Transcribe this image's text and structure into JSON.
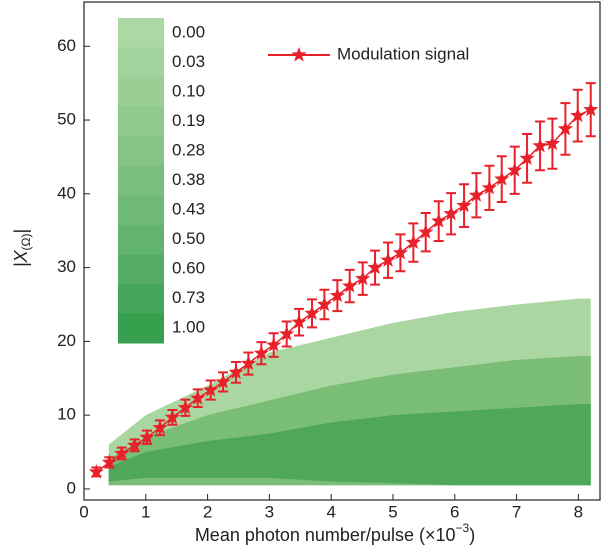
{
  "chart_data": {
    "type": "errorbar",
    "x_label": [
      "Mean photon number/pulse (×10",
      "−3",
      ")"
    ],
    "y_label": [
      "|X",
      "(Ω)",
      "|"
    ],
    "xlim": [
      0,
      8.35
    ],
    "ylim": [
      -1.5,
      66
    ],
    "xticks": [
      0,
      1,
      2,
      3,
      4,
      5,
      6,
      7,
      8
    ],
    "yticks": [
      0,
      10,
      20,
      30,
      40,
      50,
      60
    ],
    "series": [
      {
        "name": "Modulation signal",
        "color": "#e8202a",
        "x": [
          0.2,
          0.41,
          0.61,
          0.82,
          1.02,
          1.23,
          1.43,
          1.64,
          1.84,
          2.05,
          2.25,
          2.46,
          2.66,
          2.87,
          3.07,
          3.28,
          3.48,
          3.69,
          3.89,
          4.1,
          4.3,
          4.51,
          4.71,
          4.92,
          5.12,
          5.33,
          5.53,
          5.74,
          5.94,
          6.15,
          6.35,
          6.56,
          6.76,
          6.97,
          7.17,
          7.38,
          7.58,
          7.79,
          7.99,
          8.2
        ],
        "values": [
          2.3,
          3.6,
          4.8,
          5.9,
          7.0,
          8.3,
          9.7,
          11,
          12.3,
          13.4,
          14.5,
          15.8,
          17,
          18.4,
          19.5,
          21,
          22.6,
          23.8,
          25,
          26.2,
          27.5,
          28.5,
          30,
          31,
          32,
          33.4,
          34.8,
          36.3,
          37.3,
          38.4,
          39.8,
          40.8,
          42,
          43.2,
          44.8,
          46.5,
          46.8,
          48.8,
          50.6,
          51.4
        ],
        "errors": [
          0.6,
          0.7,
          0.8,
          0.8,
          0.9,
          1,
          1,
          1.1,
          1.2,
          1.3,
          1.3,
          1.4,
          1.5,
          1.5,
          1.6,
          1.7,
          1.8,
          1.9,
          2,
          2.1,
          2.2,
          2.2,
          2.3,
          2.4,
          2.5,
          2.6,
          2.6,
          2.7,
          2.8,
          2.9,
          3,
          3,
          3.1,
          3.2,
          3.3,
          3.3,
          3.4,
          3.5,
          3.5,
          3.6
        ]
      }
    ],
    "density_regions": [
      {
        "color": "#a9d6a1",
        "x": [
          0.4,
          1,
          2,
          3,
          4,
          5,
          6,
          7,
          8,
          8.2
        ],
        "low": [
          0.5,
          0.5,
          0.5,
          0.5,
          0.5,
          0.5,
          0.5,
          0.5,
          0.5,
          0.5
        ],
        "high": [
          6,
          10,
          14,
          18.5,
          20.5,
          22.5,
          24,
          25,
          25.8,
          25.8
        ]
      },
      {
        "color": "#79bd77",
        "x": [
          0.4,
          1,
          2,
          3,
          4,
          5,
          6,
          7,
          8,
          8.2
        ],
        "low": [
          0.5,
          0.5,
          0.5,
          0.5,
          0.5,
          0.5,
          0.5,
          0.5,
          0.5,
          0.5
        ],
        "high": [
          4,
          7,
          10,
          12,
          14,
          15.5,
          16.5,
          17.5,
          18,
          18
        ]
      },
      {
        "color": "#4ea75a",
        "x": [
          0.4,
          1,
          2,
          3,
          4,
          5,
          6,
          7,
          8,
          8.2
        ],
        "low": [
          1,
          1.5,
          1.5,
          1.5,
          1,
          0.8,
          0.5,
          0.5,
          0.5,
          0.5
        ],
        "high": [
          3,
          5,
          6.5,
          7.5,
          9,
          10,
          10.5,
          11,
          11.5,
          11.5
        ]
      }
    ],
    "colorbar": {
      "labels": [
        "0.00",
        "0.03",
        "0.10",
        "0.19",
        "0.28",
        "0.38",
        "0.43",
        "0.50",
        "0.60",
        "0.73",
        "1.00"
      ],
      "colors": [
        "#acd8a3",
        "#a3d39c",
        "#99ce95",
        "#8fc98d",
        "#85c486",
        "#7bbf7f",
        "#70ba77",
        "#63b46e",
        "#55ad64",
        "#46a659",
        "#36a04e"
      ]
    }
  }
}
